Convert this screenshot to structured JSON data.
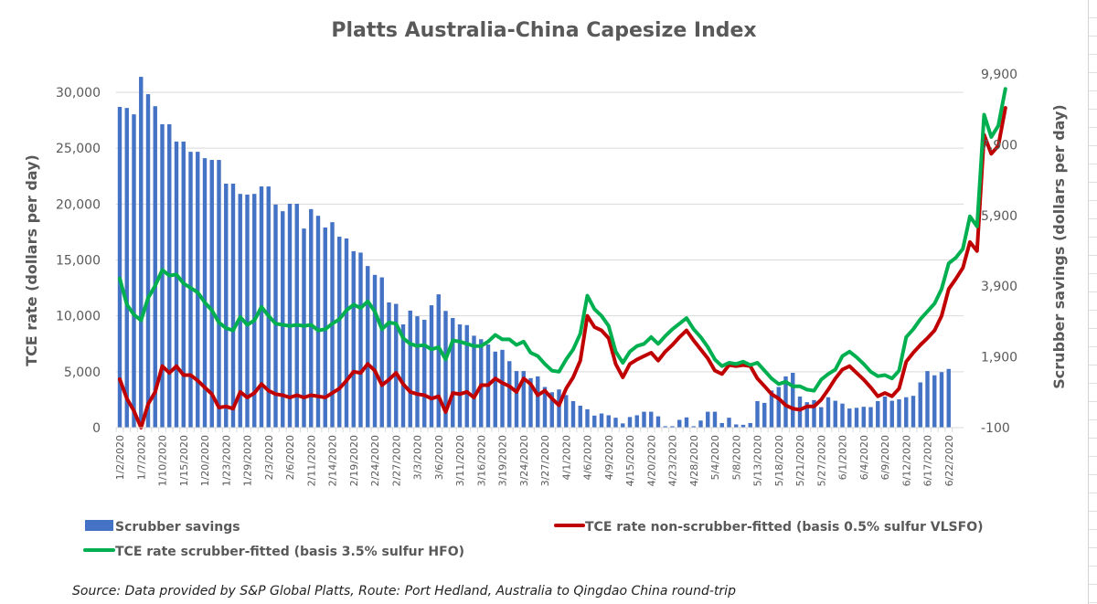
{
  "chart_data": {
    "type": "bar+line",
    "title": "Platts Australia-China Capesize Index",
    "ylabel_left": "TCE rate (dollars per day)",
    "ylabel_right": "Scrubber savings (dollars per day)",
    "xlabel": "",
    "ylim_left": [
      0,
      30000
    ],
    "ylim_right": [
      -100,
      9900
    ],
    "yticks_left": [
      "0",
      "5,000",
      "10,000",
      "15,000",
      "20,000",
      "25,000",
      "30,000"
    ],
    "yticks_left_values": [
      0,
      5000,
      10000,
      15000,
      20000,
      25000,
      30000
    ],
    "yticks_right": [
      "-100",
      "1,900",
      "3,900",
      "5,900",
      "7,900",
      "9,900"
    ],
    "yticks_right_values": [
      -100,
      1900,
      3900,
      5900,
      7900,
      9900
    ],
    "grid": true,
    "legend_position": "bottom",
    "x_tick_labels": [
      "1/2/2020",
      "1/7/2020",
      "1/10/2020",
      "1/15/2020",
      "1/20/2020",
      "1/23/2020",
      "1/29/2020",
      "2/3/2020",
      "2/6/2020",
      "2/11/2020",
      "2/14/2020",
      "2/19/2020",
      "2/24/2020",
      "2/27/2020",
      "3/3/2020",
      "3/6/2020",
      "3/11/2020",
      "3/16/2020",
      "3/19/2020",
      "3/24/2020",
      "3/27/2020",
      "4/1/2020",
      "4/6/2020",
      "4/9/2020",
      "4/15/2020",
      "4/20/2020",
      "4/23/2020",
      "4/28/2020",
      "5/4/2020",
      "5/8/2020",
      "5/13/2020",
      "5/18/2020",
      "5/21/2020",
      "5/27/2020",
      "6/1/2020",
      "6/4/2020",
      "6/9/2020",
      "6/12/2020",
      "6/17/2020",
      "6/22/2020"
    ],
    "x_tick_every": 3,
    "series": [
      {
        "name": "Scrubber savings",
        "kind": "bar",
        "axis": "right",
        "color": "#4472c4",
        "values": [
          8970,
          8940,
          8760,
          9820,
          9330,
          8990,
          8480,
          8480,
          7990,
          7990,
          7700,
          7700,
          7520,
          7470,
          7470,
          6800,
          6800,
          6510,
          6490,
          6510,
          6720,
          6720,
          6210,
          6020,
          6230,
          6230,
          5530,
          6080,
          5890,
          5560,
          5710,
          5300,
          5250,
          4890,
          4850,
          4470,
          4220,
          4150,
          3440,
          3400,
          2820,
          3210,
          3050,
          2950,
          3360,
          3670,
          3200,
          3000,
          2820,
          2800,
          2500,
          2400,
          2250,
          2050,
          2100,
          1780,
          1500,
          1500,
          1300,
          1350,
          1050,
          900,
          980,
          820,
          650,
          520,
          420,
          240,
          300,
          250,
          180,
          20,
          200,
          250,
          350,
          350,
          220,
          -60,
          -60,
          120,
          190,
          -60,
          100,
          350,
          350,
          30,
          180,
          -10,
          -20,
          30,
          650,
          600,
          950,
          1050,
          1350,
          1450,
          780,
          620,
          680,
          480,
          760,
          660,
          580,
          440,
          460,
          490,
          480,
          650,
          780,
          660,
          700,
          760,
          800,
          1180,
          1500,
          1380,
          1470,
          1560
        ]
      },
      {
        "name": "TCE rate non-scrubber-fitted (basis 0.5% sulfur VLSFO)",
        "kind": "line",
        "axis": "left",
        "color": "#c00000",
        "values": [
          4330,
          2600,
          1500,
          0,
          2100,
          3200,
          5500,
          4900,
          5500,
          4700,
          4700,
          4200,
          3600,
          3000,
          1800,
          1900,
          1700,
          3200,
          2700,
          3100,
          3900,
          3300,
          3000,
          2900,
          2700,
          2900,
          2700,
          2900,
          2800,
          2700,
          3100,
          3500,
          4200,
          5000,
          4900,
          5700,
          5100,
          3800,
          4300,
          4900,
          3900,
          3200,
          3000,
          2900,
          2600,
          2800,
          1400,
          3100,
          3000,
          3200,
          2700,
          3800,
          3800,
          4400,
          4000,
          3700,
          3200,
          4400,
          3900,
          2900,
          3300,
          2600,
          2000,
          3500,
          4500,
          6000,
          10000,
          9000,
          8700,
          8000,
          5700,
          4500,
          5700,
          6100,
          6400,
          6700,
          6000,
          6800,
          7400,
          8100,
          8700,
          7800,
          7000,
          6200,
          5100,
          4800,
          5600,
          5500,
          5600,
          5500,
          4400,
          3700,
          3000,
          2600,
          2000,
          1700,
          1600,
          1900,
          1900,
          2500,
          3400,
          4400,
          5200,
          5500,
          4900,
          4300,
          3600,
          2800,
          3100,
          2800,
          3500,
          5900,
          6700,
          7400,
          8000,
          8700,
          10000,
          12400,
          13300,
          14300,
          16600,
          15800,
          26200,
          24500,
          25200,
          28600
        ]
      },
      {
        "name": "TCE rate scrubber-fitted (basis 3.5% sulfur HFO)",
        "kind": "line",
        "axis": "left",
        "color": "#00b050",
        "values": [
          13330,
          11000,
          10100,
          9600,
          11600,
          12700,
          14100,
          13600,
          13700,
          12900,
          12500,
          12100,
          11200,
          10500,
          9400,
          8900,
          8700,
          9900,
          9200,
          9600,
          10800,
          10000,
          9300,
          9200,
          9100,
          9200,
          9100,
          9200,
          8700,
          8800,
          9300,
          9700,
          10500,
          11000,
          10700,
          11300,
          10400,
          8800,
          9400,
          9300,
          8000,
          7500,
          7300,
          7400,
          7000,
          7200,
          6100,
          7800,
          7700,
          7500,
          7300,
          7300,
          7700,
          8300,
          7900,
          7900,
          7400,
          7700,
          6700,
          6400,
          5700,
          5100,
          5000,
          6100,
          7000,
          8400,
          11800,
          10600,
          10000,
          9100,
          6800,
          5800,
          6800,
          7300,
          7500,
          8100,
          7500,
          8200,
          8800,
          9300,
          9800,
          8800,
          8100,
          7200,
          6100,
          5500,
          5800,
          5700,
          5900,
          5600,
          5800,
          5100,
          4400,
          3900,
          4100,
          3700,
          3700,
          3400,
          3300,
          4300,
          4800,
          5200,
          6400,
          6800,
          6300,
          5700,
          5000,
          4600,
          4700,
          4400,
          5100,
          8100,
          8800,
          9700,
          10400,
          11100,
          12400,
          14700,
          15200,
          16000,
          18900,
          18000,
          28000,
          26000,
          27000,
          30300
        ]
      }
    ],
    "legend": [
      {
        "label": "Scrubber savings",
        "symbol": "bar",
        "color": "#4472c4"
      },
      {
        "label": "TCE rate non-scrubber-fitted (basis 0.5% sulfur VLSFO)",
        "symbol": "line",
        "color": "#c00000"
      },
      {
        "label": "TCE rate scrubber-fitted (basis 3.5% sulfur HFO)",
        "symbol": "line",
        "color": "#00b050"
      }
    ],
    "source_note": "Source: Data provided by S&P Global Platts, Route: Port Hedland, Australia to Qingdao China round-trip"
  }
}
